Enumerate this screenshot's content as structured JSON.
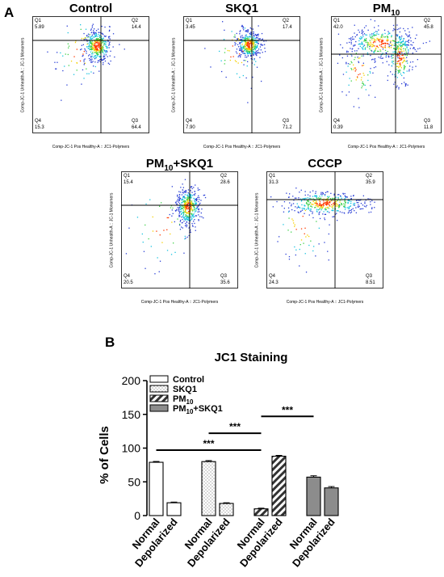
{
  "panel_a": {
    "letter": "A",
    "x_axis_label": "Comp-JC-1 Pos Healthy-A :: JC1-Polymers",
    "y_axis_label": "Comp-JC-1 Unhealth-A :: JC-1 Monomers",
    "quadrant_names": [
      "Q1",
      "Q2",
      "Q3",
      "Q4"
    ],
    "plots": [
      {
        "title": "Control",
        "title_sub": "",
        "title_suffix": "",
        "q1": "5.89",
        "q2": "14.4",
        "q3": "64.4",
        "q4": "15.3"
      },
      {
        "title": "SKQ1",
        "title_sub": "",
        "title_suffix": "",
        "q1": "3.45",
        "q2": "17.4",
        "q3": "71.2",
        "q4": "7.90"
      },
      {
        "title": "PM",
        "title_sub": "10",
        "title_suffix": "",
        "q1": "42.0",
        "q2": "45.8",
        "q3": "11.8",
        "q4": "0.39"
      },
      {
        "title": "PM",
        "title_sub": "10",
        "title_suffix": "+SKQ1",
        "q1": "15.4",
        "q2": "28.6",
        "q3": "35.6",
        "q4": "20.5"
      },
      {
        "title": "CCCP",
        "title_sub": "",
        "title_suffix": "",
        "q1": "31.3",
        "q2": "35.9",
        "q3": "8.51",
        "q4": "24.3"
      }
    ]
  },
  "panel_b": {
    "letter": "B",
    "title": "JC1 Staining",
    "ylabel": "% of Cells"
  },
  "chart_data": {
    "type": "bar",
    "title": "JC1 Staining",
    "ylabel": "% of Cells",
    "xlabel": "",
    "ylim": [
      0,
      200
    ],
    "yticks": [
      0,
      50,
      100,
      150,
      200
    ],
    "categories": [
      "Normal",
      "Depolarized"
    ],
    "series": [
      {
        "name": "Control",
        "sub": "",
        "suffix": "",
        "values": [
          79,
          19
        ],
        "errors": [
          1.2,
          1.0
        ],
        "pattern": "open"
      },
      {
        "name": "SKQ1",
        "sub": "",
        "suffix": "",
        "values": [
          80,
          18
        ],
        "errors": [
          1.5,
          1.0
        ],
        "pattern": "dotted"
      },
      {
        "name": "PM",
        "sub": "10",
        "suffix": "",
        "values": [
          10,
          88
        ],
        "errors": [
          1.0,
          1.2
        ],
        "pattern": "hatched"
      },
      {
        "name": "PM",
        "sub": "10",
        "suffix": "+SKQ1",
        "values": [
          57,
          41
        ],
        "errors": [
          2.0,
          2.0
        ],
        "pattern": "gray"
      }
    ],
    "significance": [
      {
        "label": "***",
        "from_bar": 0,
        "to_bar": 4,
        "y": 97
      },
      {
        "label": "***",
        "from_bar": 2,
        "to_bar": 4,
        "y": 122
      },
      {
        "label": "***",
        "from_bar": 4,
        "to_bar": 6,
        "y": 147
      }
    ],
    "legend_position": "top-left",
    "colors": {
      "gray": "#8c8c8c",
      "hatch": "#333333",
      "dots": "#777777"
    }
  }
}
